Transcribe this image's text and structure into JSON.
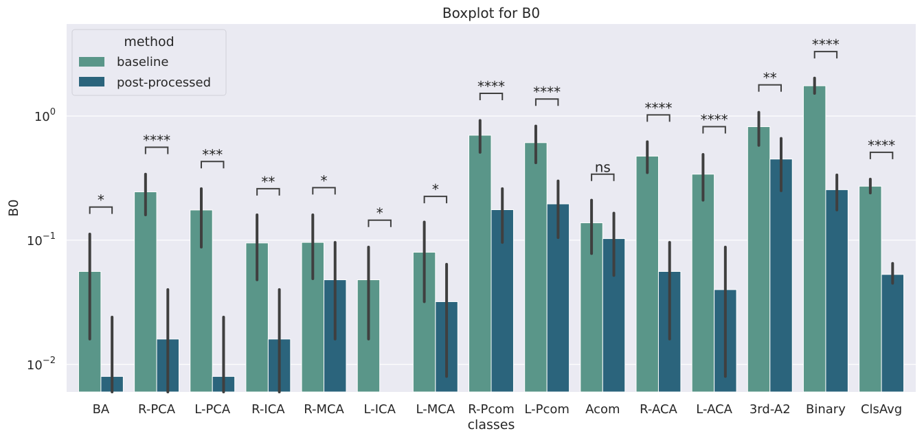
{
  "chart_data": {
    "type": "bar",
    "title": "Boxplot for B0",
    "xlabel": "classes",
    "ylabel": "B0",
    "yscale": "log",
    "ylim": [
      0.006,
      5.5
    ],
    "grid": true,
    "legend": {
      "title": "method",
      "placement": "top-left",
      "entries": [
        "baseline",
        "post-processed"
      ]
    },
    "categories": [
      "BA",
      "R-PCA",
      "L-PCA",
      "R-ICA",
      "R-MCA",
      "L-ICA",
      "L-MCA",
      "R-Pcom",
      "L-Pcom",
      "Acom",
      "R-ACA",
      "L-ACA",
      "3rd-A2",
      "Binary",
      "ClsAvg"
    ],
    "series": [
      {
        "name": "baseline",
        "color": "#5a9689",
        "values": [
          0.056,
          0.245,
          0.175,
          0.095,
          0.096,
          0.048,
          0.08,
          0.7,
          0.61,
          0.138,
          0.475,
          0.34,
          0.82,
          1.75,
          0.272
        ],
        "ci_low": [
          0.016,
          0.16,
          0.088,
          0.048,
          0.049,
          0.016,
          0.032,
          0.51,
          0.42,
          0.078,
          0.35,
          0.21,
          0.58,
          1.52,
          0.24
        ],
        "ci_high": [
          0.112,
          0.34,
          0.26,
          0.16,
          0.16,
          0.088,
          0.14,
          0.92,
          0.83,
          0.21,
          0.62,
          0.49,
          1.07,
          2.02,
          0.31
        ]
      },
      {
        "name": "post-processed",
        "color": "#2b647c",
        "values": [
          0.008,
          0.016,
          0.008,
          0.016,
          0.048,
          null,
          0.032,
          0.176,
          0.196,
          0.103,
          0.056,
          0.04,
          0.45,
          0.255,
          0.053
        ],
        "ci_low": [
          0.006,
          0.006,
          0.006,
          0.006,
          0.016,
          null,
          0.008,
          0.096,
          0.105,
          0.052,
          0.016,
          0.008,
          0.25,
          0.175,
          0.045
        ],
        "ci_high": [
          0.024,
          0.04,
          0.024,
          0.04,
          0.096,
          null,
          0.064,
          0.26,
          0.3,
          0.165,
          0.096,
          0.088,
          0.66,
          0.335,
          0.065
        ]
      }
    ],
    "significance": [
      "*",
      "****",
      "***",
      "**",
      "*",
      "*",
      "*",
      "****",
      "****",
      "ns",
      "****",
      "****",
      "**",
      "****",
      "****"
    ],
    "significance_y": [
      0.185,
      0.56,
      0.43,
      0.26,
      0.265,
      0.145,
      0.225,
      1.52,
      1.37,
      0.34,
      1.02,
      0.82,
      1.78,
      3.3,
      0.51
    ],
    "yticks": [
      {
        "value": 0.01,
        "base": "10",
        "exp": "−2"
      },
      {
        "value": 0.1,
        "base": "10",
        "exp": "−1"
      },
      {
        "value": 1,
        "base": "10",
        "exp": "0"
      }
    ]
  }
}
